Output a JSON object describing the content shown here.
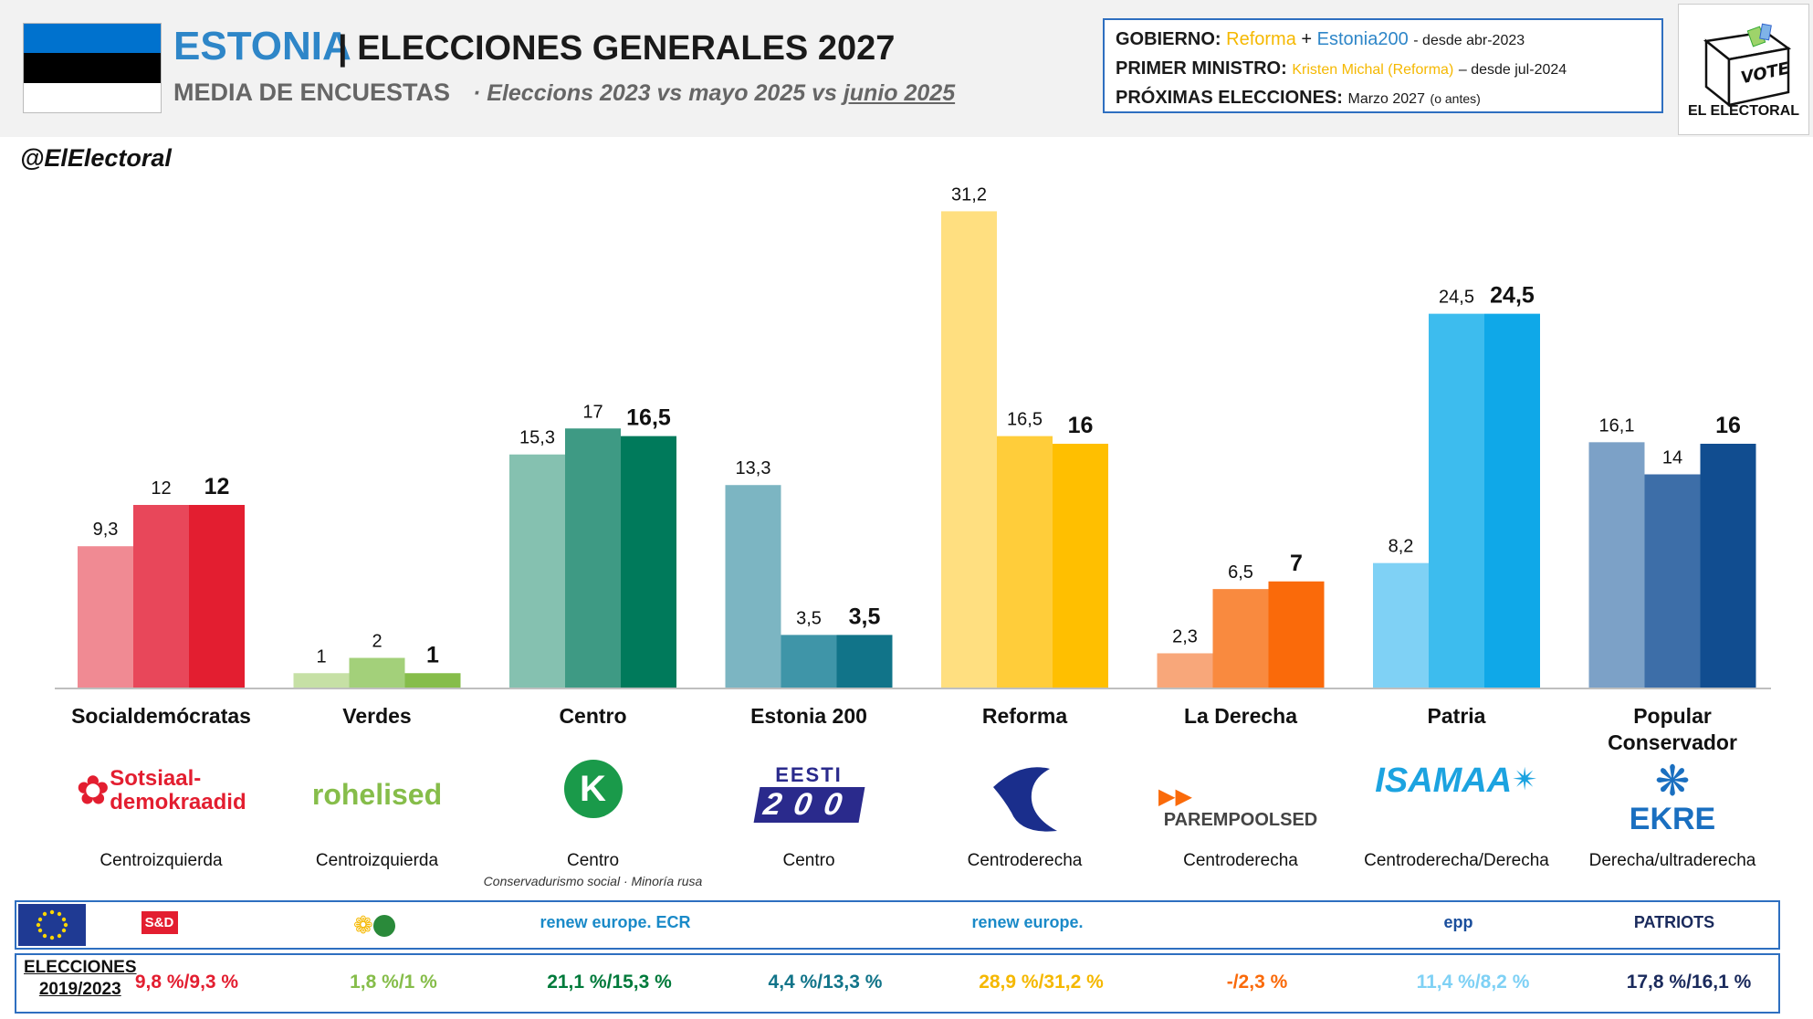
{
  "header": {
    "flag_colors": [
      "#0072ce",
      "#000000",
      "#ffffff"
    ],
    "country": "ESTONIA",
    "separator": "|",
    "title": "ELECCIONES GENERALES 2027",
    "subtitle": "MEDIA DE ENCUESTAS",
    "subtitle_dot": "·",
    "subtitle_detail": "Eleccions 2023 vs mayo 2025 vs",
    "subtitle_detail_underlined": "junio 2025",
    "handle": "@ElElectoral"
  },
  "gov_box": {
    "gobierno_label": "GOBIERNO:",
    "gobierno_p1": "Reforma",
    "gobierno_plus": "+",
    "gobierno_p2": "Estonia200",
    "gobierno_since": "- desde abr-2023",
    "pm_label": "PRIMER MINISTRO:",
    "pm_name": "Kristen Michal (Reforma)",
    "pm_since": "– desde jul-2024",
    "next_label": "PRÓXIMAS ELECCIONES:",
    "next_value": "Marzo 2027",
    "next_note": "(o antes)"
  },
  "brand": {
    "vote": "VOTE",
    "name": "EL ELECTORAL"
  },
  "chart_data": {
    "type": "bar",
    "categories": [
      "Socialdemócratas",
      "Verdes",
      "Centro",
      "Estonia 200",
      "Reforma",
      "La Derecha",
      "Patria",
      "Popular Conservador"
    ],
    "series": [
      {
        "values": [
          9.3,
          1,
          15.3,
          13.3,
          31.2,
          2.3,
          8.2,
          16.1
        ]
      },
      {
        "values": [
          12,
          2,
          17,
          3.5,
          16.5,
          6.5,
          24.5,
          14
        ]
      },
      {
        "values": [
          12,
          1,
          16.5,
          3.5,
          16,
          7,
          24.5,
          16
        ]
      }
    ],
    "value_labels": [
      [
        "9,3",
        "1",
        "15,3",
        "13,3",
        "31,2",
        "2,3",
        "8,2",
        "16,1"
      ],
      [
        "12",
        "2",
        "17",
        "3,5",
        "16,5",
        "6,5",
        "24,5",
        "14"
      ],
      [
        "12",
        "1",
        "16,5",
        "3,5",
        "16",
        "7",
        "24,5",
        "16"
      ]
    ],
    "category_label_lines": [
      [
        "Socialdemócratas"
      ],
      [
        "Verdes"
      ],
      [
        "Centro"
      ],
      [
        "Estonia 200"
      ],
      [
        "Reforma"
      ],
      [
        "La Derecha"
      ],
      [
        "Patria"
      ],
      [
        "Popular",
        "Conservador"
      ]
    ],
    "colors": [
      [
        "#f08a93",
        "#e8475a",
        "#e31e30"
      ],
      [
        "#c6e0a5",
        "#a3d07a",
        "#86bd4a"
      ],
      [
        "#85c1b0",
        "#3e9a84",
        "#007a5b"
      ],
      [
        "#7cb5c2",
        "#3f95a8",
        "#117489"
      ],
      [
        "#ffdf80",
        "#ffcd3a",
        "#ffbf00"
      ],
      [
        "#f8a77a",
        "#f98a3f",
        "#fa6a0a"
      ],
      [
        "#7fd1f5",
        "#3dbcee",
        "#0fa8e8"
      ],
      [
        "#7ca1c7",
        "#3d6ea8",
        "#114d90"
      ]
    ],
    "ylim": [
      0,
      32
    ],
    "xlabel": "",
    "ylabel": "",
    "grid": false,
    "legend": "none"
  },
  "parties": [
    {
      "logo_text": "Sotsiaal-\ndemokraadid",
      "logo_color": "#e31e30",
      "ideology": "Centroizquierda",
      "ideology_sub": "",
      "group": "S&D",
      "group_color": "#e31e30",
      "result": "9,8 %/9,3 %",
      "result_color": "#e31e30"
    },
    {
      "logo_text": "rohelised",
      "logo_color": "#86bd4a",
      "ideology": "Centroizquierda",
      "ideology_sub": "",
      "group": "",
      "group_color": "#86bd4a",
      "result": "1,8 %/1 %",
      "result_color": "#86bd4a"
    },
    {
      "logo_text": "K",
      "logo_color": "#1a9a4a",
      "ideology": "Centro",
      "ideology_sub": "Conservadurismo social · Minoría rusa",
      "group": "renew europe. ECR",
      "group_color": "#1a8ac8",
      "result": "21,1 %/15,3 %",
      "result_color": "#007a3b"
    },
    {
      "logo_text": "EESTI\n200",
      "logo_color": "#2a2a8c",
      "ideology": "Centro",
      "ideology_sub": "",
      "group": "",
      "group_color": "#1a8ac8",
      "result": "4,4 %/13,3 %",
      "result_color": "#117489"
    },
    {
      "logo_text": "",
      "logo_color": "#1a2e8c",
      "ideology": "Centroderecha",
      "ideology_sub": "",
      "group": "renew europe.",
      "group_color": "#1a8ac8",
      "result": "28,9 %/31,2 %",
      "result_color": "#f5b800"
    },
    {
      "logo_text": "PAREMPOOLSED",
      "logo_color": "#444444",
      "ideology": "Centroderecha",
      "ideology_sub": "",
      "group": "",
      "group_color": "#fa6a0a",
      "result": "-/2,3 %",
      "result_color": "#fa6a0a"
    },
    {
      "logo_text": "ISAMAA",
      "logo_color": "#1ca3e0",
      "ideology": "Centroderecha/Derecha",
      "ideology_sub": "",
      "group": "epp",
      "group_color": "#1a4e9c",
      "result": "11,4 %/8,2 %",
      "result_color": "#7fd1f5"
    },
    {
      "logo_text": "EKRE",
      "logo_color": "#1a6fc0",
      "ideology": "Derecha/ultraderecha",
      "ideology_sub": "",
      "group": "PATRIOTS",
      "group_color": "#1a2a5c",
      "result": "17,8 %/16,1 %",
      "result_color": "#1a2a5c"
    }
  ],
  "results_row": {
    "label_line1": "ELECCIONES",
    "label_line2": "2019/2023"
  }
}
